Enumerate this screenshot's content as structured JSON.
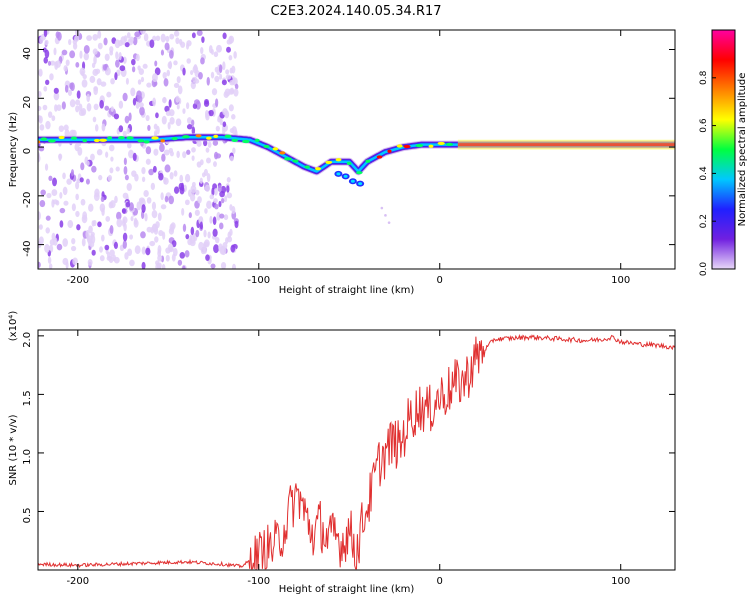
{
  "title": "C2E3.2024.140.05.34.R17",
  "chart_data": [
    {
      "type": "heatmap",
      "xlabel": "Height of straight line (km)",
      "ylabel": "Frequency (Hz)",
      "xlim": [
        -222,
        130
      ],
      "ylim": [
        -50,
        48
      ],
      "x_ticks": [
        -200,
        -100,
        0,
        100
      ],
      "x_tick_labels": [
        "-200",
        "-100",
        "0",
        "100"
      ],
      "y_ticks": [
        -40,
        -20,
        0,
        20,
        40
      ],
      "y_tick_labels": [
        "-40",
        "-20",
        "0",
        "20",
        "40"
      ],
      "colorbar": {
        "label": "Normalized spectral amplitude",
        "range": [
          0,
          1
        ],
        "ticks": [
          0.0,
          0.2,
          0.4,
          0.6,
          0.8
        ],
        "tick_labels": [
          "0.0",
          "0.2",
          "0.4",
          "0.6",
          "0.8"
        ],
        "colormap": [
          "#e8d8f8",
          "#7020e0",
          "#2020ff",
          "#00c8ff",
          "#00ff40",
          "#ffff00",
          "#ff8000",
          "#ff0000",
          "#ff00a0"
        ]
      },
      "ridge": {
        "name": "main frequency track",
        "x": [
          -222,
          -200,
          -180,
          -160,
          -140,
          -120,
          -105,
          -95,
          -85,
          -75,
          -68,
          -60,
          -50,
          -45,
          -40,
          -35,
          -30,
          -20,
          -10,
          0,
          20,
          50,
          80,
          130
        ],
        "y": [
          3,
          3,
          3,
          3,
          4,
          4,
          3,
          0,
          -4,
          -8,
          -10,
          -6,
          -6,
          -10,
          -6,
          -4,
          -2,
          0,
          1,
          1,
          1,
          1,
          1,
          1
        ]
      },
      "scatter_region": {
        "x": [
          -222,
          -112
        ],
        "y": [
          -50,
          48
        ]
      },
      "grid": false
    },
    {
      "type": "line",
      "xlabel": "Height of straight line (km)",
      "ylabel": "SNR (10 * v/v)",
      "y_multiplier": "(x10⁴)",
      "xlim": [
        -222,
        130
      ],
      "ylim": [
        0,
        2.05
      ],
      "x_ticks": [
        -200,
        -100,
        0,
        100
      ],
      "x_tick_labels": [
        "-200",
        "-100",
        "0",
        "100"
      ],
      "y_ticks": [
        0.5,
        1.0,
        1.5,
        2.0
      ],
      "y_tick_labels": [
        "0.5",
        "1.0",
        "1.5",
        "2.0"
      ],
      "series": [
        {
          "color": "#e03030",
          "x": [
            -222,
            -200,
            -180,
            -160,
            -140,
            -120,
            -110,
            -100,
            -95,
            -90,
            -86,
            -82,
            -78,
            -74,
            -70,
            -66,
            -62,
            -58,
            -54,
            -50,
            -46,
            -42,
            -38,
            -34,
            -30,
            -26,
            -22,
            -18,
            -14,
            -10,
            -6,
            -2,
            2,
            6,
            10,
            14,
            18,
            22,
            26,
            30,
            40,
            50,
            60,
            70,
            80,
            90,
            95,
            100,
            110,
            120,
            130
          ],
          "y": [
            0.05,
            0.04,
            0.05,
            0.06,
            0.07,
            0.05,
            0.03,
            0.12,
            0.18,
            0.22,
            0.35,
            0.55,
            0.65,
            0.45,
            0.3,
            0.4,
            0.25,
            0.3,
            0.22,
            0.35,
            0.15,
            0.45,
            0.65,
            0.9,
            1.0,
            1.1,
            1.05,
            1.25,
            1.35,
            1.4,
            1.35,
            1.45,
            1.5,
            1.55,
            1.6,
            1.62,
            1.75,
            1.85,
            1.9,
            1.97,
            1.98,
            1.99,
            1.98,
            1.97,
            1.96,
            1.97,
            1.99,
            1.95,
            1.93,
            1.92,
            1.9
          ]
        }
      ],
      "grid": false
    }
  ]
}
